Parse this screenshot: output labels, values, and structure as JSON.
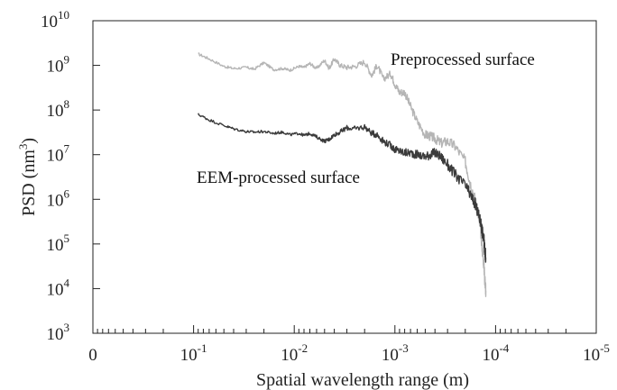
{
  "chart_data": {
    "type": "line",
    "xlabel": "Spatial wavelength range (m)",
    "ylabel": "PSD (nm³)",
    "ylabel_parts": {
      "prefix": "PSD (nm",
      "sup": "3",
      "suffix": ")"
    },
    "x_scale": "log",
    "y_scale": "log",
    "x_reversed": true,
    "xlim": [
      1,
      1e-05
    ],
    "ylim": [
      1000,
      10000000000
    ],
    "grid": false,
    "x_ticks": [
      {
        "value": 1,
        "base": "0",
        "sup": ""
      },
      {
        "value": 0.1,
        "base": "10",
        "sup": "-1"
      },
      {
        "value": 0.01,
        "base": "10",
        "sup": "-2"
      },
      {
        "value": 0.001,
        "base": "10",
        "sup": "-3"
      },
      {
        "value": 0.0001,
        "base": "10",
        "sup": "-4"
      },
      {
        "value": 1e-05,
        "base": "10",
        "sup": "-5"
      }
    ],
    "y_ticks": [
      {
        "value": 1000,
        "base": "10",
        "sup": "3"
      },
      {
        "value": 10000,
        "base": "10",
        "sup": "4"
      },
      {
        "value": 100000,
        "base": "10",
        "sup": "5"
      },
      {
        "value": 1000000,
        "base": "10",
        "sup": "6"
      },
      {
        "value": 10000000,
        "base": "10",
        "sup": "7"
      },
      {
        "value": 100000000,
        "base": "10",
        "sup": "8"
      },
      {
        "value": 1000000000,
        "base": "10",
        "sup": "9"
      },
      {
        "value": 10000000000,
        "base": "10",
        "sup": "10"
      }
    ],
    "series": [
      {
        "name": "Preprocessed surface",
        "color": "#b5b5b5",
        "x": [
          0.09,
          0.07,
          0.05,
          0.04,
          0.03,
          0.025,
          0.02,
          0.016,
          0.013,
          0.011,
          0.009,
          0.008,
          0.007,
          0.006,
          0.005,
          0.0045,
          0.004,
          0.0035,
          0.003,
          0.0025,
          0.002,
          0.0017,
          0.0015,
          0.0013,
          0.0011,
          0.001,
          0.0009,
          0.0008,
          0.0007,
          0.0006,
          0.0005,
          0.00045,
          0.0004,
          0.00035,
          0.0003,
          0.00025,
          0.0002,
          0.00018,
          0.00016,
          0.00015,
          0.00014,
          0.000135,
          0.00013,
          0.000128,
          0.000125
        ],
        "y": [
          1800000000,
          1400000000,
          950000000,
          850000000,
          900000000,
          820000000,
          1150000000,
          800000000,
          850000000,
          780000000,
          950000000,
          900000000,
          1100000000,
          850000000,
          1300000000,
          850000000,
          1400000000,
          1000000000,
          900000000,
          950000000,
          1200000000,
          600000000,
          1000000000,
          500000000,
          650000000,
          380000000,
          250000000,
          250000000,
          120000000,
          55000000,
          28000000,
          26000000,
          23000000,
          18000000,
          20000000,
          15000000,
          7000000,
          2500000,
          1000000,
          500000,
          180000,
          70000,
          30000,
          15000,
          9000
        ]
      },
      {
        "name": "EEM-processed surface",
        "color": "#3b3b3b",
        "x": [
          0.09,
          0.07,
          0.05,
          0.04,
          0.03,
          0.025,
          0.02,
          0.016,
          0.013,
          0.011,
          0.009,
          0.008,
          0.007,
          0.006,
          0.005,
          0.0045,
          0.004,
          0.0035,
          0.003,
          0.0025,
          0.002,
          0.0017,
          0.0015,
          0.0013,
          0.0011,
          0.001,
          0.0009,
          0.0008,
          0.0007,
          0.0006,
          0.0005,
          0.00045,
          0.0004,
          0.00035,
          0.0003,
          0.00025,
          0.0002,
          0.00018,
          0.00016,
          0.00015,
          0.00014,
          0.000135,
          0.00013,
          0.000128,
          0.000125
        ],
        "y": [
          80000000,
          60000000,
          45000000,
          38000000,
          33000000,
          32000000,
          33000000,
          30000000,
          32000000,
          28000000,
          30000000,
          27000000,
          30000000,
          25000000,
          20000000,
          22000000,
          28000000,
          32000000,
          40000000,
          38000000,
          42000000,
          30000000,
          28000000,
          20000000,
          16000000,
          13000000,
          12000000,
          11000000,
          11000000,
          10000000,
          9000000,
          10000000,
          11000000,
          9000000,
          6000000,
          3500000,
          2000000,
          1300000,
          800000,
          500000,
          300000,
          180000,
          110000,
          70000,
          50000
        ]
      }
    ],
    "annotations": [
      {
        "text": "Preprocessed surface",
        "series": 0
      },
      {
        "text": "EEM-processed surface",
        "series": 1
      }
    ]
  }
}
